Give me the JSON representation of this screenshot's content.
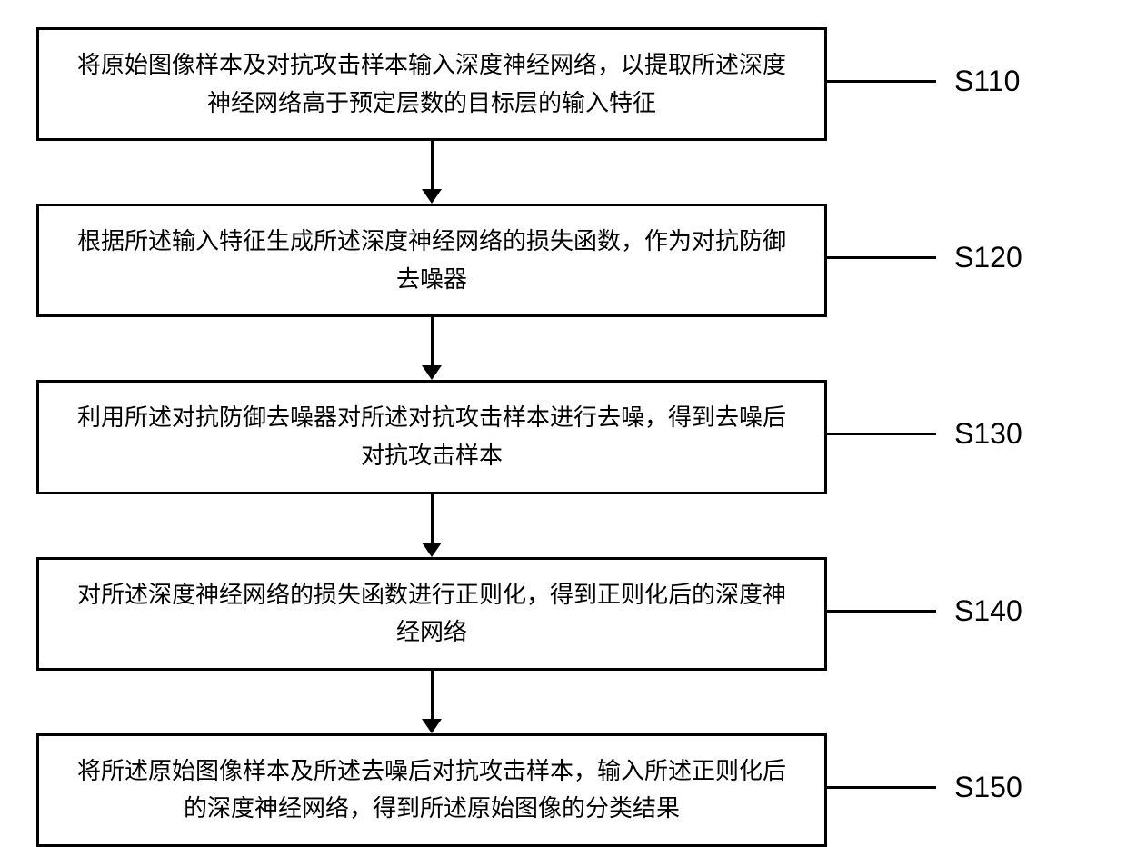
{
  "flowchart": {
    "type": "flowchart",
    "direction": "vertical",
    "box_border_color": "#000000",
    "box_border_width": 3,
    "box_background": "#ffffff",
    "text_color": "#000000",
    "step_fontsize": 26,
    "label_fontsize": 32,
    "connector_color": "#000000",
    "arrow_color": "#000000",
    "steps": [
      {
        "id": "S110",
        "text": "将原始图像样本及对抗攻击样本输入深度神经网络，以提取所述深度神经网络高于预定层数的目标层的输入特征"
      },
      {
        "id": "S120",
        "text": "根据所述输入特征生成所述深度神经网络的损失函数，作为对抗防御去噪器"
      },
      {
        "id": "S130",
        "text": "利用所述对抗防御去噪器对所述对抗攻击样本进行去噪，得到去噪后对抗攻击样本"
      },
      {
        "id": "S140",
        "text": "对所述深度神经网络的损失函数进行正则化，得到正则化后的深度神经网络"
      },
      {
        "id": "S150",
        "text": "将所述原始图像样本及所述去噪后对抗攻击样本，输入所述正则化后的深度神经网络，得到所述原始图像的分类结果"
      }
    ]
  }
}
